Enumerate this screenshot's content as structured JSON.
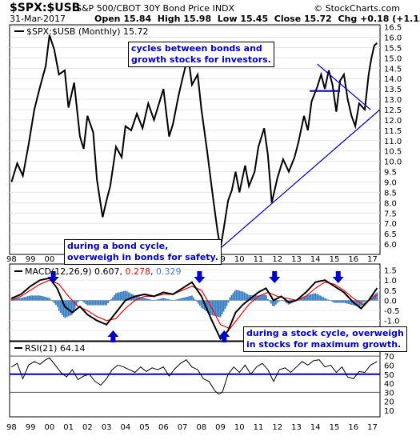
{
  "header": {
    "symbol": "$SPX:$USB",
    "description": "S&P 500/CBOT 30Y Bond Price INDX",
    "date": "31-Mar-2017",
    "quote": "Open 15.84  High 15.98  Low 15.45  Close 15.72  Chg +0.18 (+1.13%)",
    "copyright": "© StockCharts.com"
  },
  "chart_data": [
    {
      "type": "line",
      "panel": "price",
      "legend": "$SPX:$USB (Monthly) 15.72",
      "series": [
        {
          "name": "$SPX:$USB (Monthly)",
          "color": "#000000",
          "points": [
            [
              1998.0,
              9.0
            ],
            [
              1998.3,
              9.9
            ],
            [
              1998.6,
              9.3
            ],
            [
              1998.9,
              10.8
            ],
            [
              1999.2,
              12.5
            ],
            [
              1999.5,
              13.6
            ],
            [
              1999.8,
              14.6
            ],
            [
              2000.0,
              16.1
            ],
            [
              2000.25,
              15.4
            ],
            [
              2000.5,
              14.2
            ],
            [
              2000.8,
              14.4
            ],
            [
              2001.0,
              12.6
            ],
            [
              2001.3,
              13.8
            ],
            [
              2001.6,
              11.2
            ],
            [
              2001.8,
              10.6
            ],
            [
              2002.0,
              12.2
            ],
            [
              2002.3,
              11.4
            ],
            [
              2002.5,
              9.1
            ],
            [
              2002.8,
              7.3
            ],
            [
              2003.0,
              8.1
            ],
            [
              2003.2,
              8.8
            ],
            [
              2003.5,
              10.7
            ],
            [
              2003.8,
              10.2
            ],
            [
              2004.0,
              11.7
            ],
            [
              2004.3,
              11.5
            ],
            [
              2004.6,
              12.3
            ],
            [
              2004.9,
              11.6
            ],
            [
              2005.2,
              12.8
            ],
            [
              2005.5,
              12.0
            ],
            [
              2005.8,
              12.9
            ],
            [
              2006.0,
              13.5
            ],
            [
              2006.3,
              11.2
            ],
            [
              2006.5,
              11.8
            ],
            [
              2006.8,
              13.2
            ],
            [
              2007.0,
              14.0
            ],
            [
              2007.3,
              15.1
            ],
            [
              2007.5,
              13.7
            ],
            [
              2007.8,
              14.2
            ],
            [
              2008.0,
              12.5
            ],
            [
              2008.3,
              10.5
            ],
            [
              2008.6,
              8.3
            ],
            [
              2008.85,
              6.6
            ],
            [
              2009.0,
              5.8
            ],
            [
              2009.2,
              6.9
            ],
            [
              2009.4,
              8.1
            ],
            [
              2009.6,
              8.6
            ],
            [
              2009.8,
              9.5
            ],
            [
              2010.0,
              8.5
            ],
            [
              2010.3,
              9.8
            ],
            [
              2010.5,
              8.8
            ],
            [
              2010.8,
              9.5
            ],
            [
              2011.0,
              10.7
            ],
            [
              2011.3,
              11.6
            ],
            [
              2011.5,
              10.3
            ],
            [
              2011.7,
              8.0
            ],
            [
              2012.0,
              9.2
            ],
            [
              2012.3,
              10.1
            ],
            [
              2012.6,
              9.5
            ],
            [
              2012.9,
              10.2
            ],
            [
              2013.1,
              10.9
            ],
            [
              2013.4,
              12.2
            ],
            [
              2013.6,
              11.5
            ],
            [
              2013.8,
              12.9
            ],
            [
              2014.1,
              13.6
            ],
            [
              2014.3,
              14.2
            ],
            [
              2014.5,
              13.5
            ],
            [
              2014.7,
              14.4
            ],
            [
              2014.9,
              13.7
            ],
            [
              2015.1,
              12.4
            ],
            [
              2015.3,
              13.9
            ],
            [
              2015.5,
              14.2
            ],
            [
              2015.7,
              13.0
            ],
            [
              2015.9,
              12.2
            ],
            [
              2016.1,
              11.7
            ],
            [
              2016.3,
              12.8
            ],
            [
              2016.6,
              12.5
            ],
            [
              2016.8,
              14.2
            ],
            [
              2016.95,
              15.0
            ],
            [
              2017.1,
              15.6
            ],
            [
              2017.25,
              15.72
            ]
          ]
        }
      ],
      "y_ticks": [
        "16.5",
        "16.0",
        "15.5",
        "15.0",
        "14.5",
        "14.0",
        "13.5",
        "13.0",
        "12.5",
        "12.0",
        "11.5",
        "11.0",
        "10.5",
        "10.0",
        "9.5",
        "9.0",
        "8.5",
        "8.0",
        "7.5",
        "7.0",
        "6.5",
        "6.0"
      ],
      "ylim": [
        5.5,
        16.6
      ],
      "x_ticks": [
        "98",
        "99",
        "00",
        "01",
        "02",
        "03",
        "04",
        "05",
        "06",
        "07",
        "08",
        "09",
        "10",
        "11",
        "12",
        "13",
        "14",
        "15",
        "16",
        "17"
      ],
      "xlim": [
        1997.9,
        2017.4
      ],
      "trendlines": [
        {
          "from": [
            2009.0,
            5.8
          ],
          "to": [
            2017.4,
            12.5
          ],
          "color": "#0000cc"
        },
        {
          "from": [
            2014.1,
            14.7
          ],
          "to": [
            2016.9,
            12.5
          ],
          "color": "#0000cc"
        }
      ],
      "level_lines": [
        {
          "from": [
            2013.7,
            13.4
          ],
          "to": [
            2015.3,
            13.4
          ],
          "color": "#0000cc"
        }
      ]
    },
    {
      "type": "line",
      "panel": "macd",
      "legend": {
        "label": "MACD(12,26,9)",
        "macd": "0.607",
        "signal": "0.278",
        "histogram": "0.329"
      },
      "series": [
        {
          "name": "MACD",
          "color": "#000000",
          "points": [
            [
              1998.0,
              0.1
            ],
            [
              1998.5,
              0.3
            ],
            [
              1999.0,
              0.7
            ],
            [
              1999.5,
              1.0
            ],
            [
              2000.0,
              1.1
            ],
            [
              2000.4,
              0.6
            ],
            [
              2000.8,
              -0.3
            ],
            [
              2001.2,
              -0.6
            ],
            [
              2001.6,
              -0.3
            ],
            [
              2002.0,
              -0.7
            ],
            [
              2002.5,
              -1.0
            ],
            [
              2003.0,
              -1.2
            ],
            [
              2003.5,
              -0.6
            ],
            [
              2004.0,
              0.0
            ],
            [
              2004.5,
              0.2
            ],
            [
              2005.0,
              0.3
            ],
            [
              2005.5,
              0.2
            ],
            [
              2006.0,
              0.4
            ],
            [
              2006.5,
              0.3
            ],
            [
              2007.0,
              0.6
            ],
            [
              2007.5,
              0.9
            ],
            [
              2008.0,
              0.2
            ],
            [
              2008.5,
              -0.9
            ],
            [
              2009.0,
              -1.9
            ],
            [
              2009.4,
              -1.5
            ],
            [
              2009.8,
              -0.6
            ],
            [
              2010.2,
              -0.2
            ],
            [
              2010.6,
              0.1
            ],
            [
              2011.0,
              0.4
            ],
            [
              2011.4,
              0.6
            ],
            [
              2011.8,
              0.0
            ],
            [
              2012.2,
              0.2
            ],
            [
              2012.6,
              -0.1
            ],
            [
              2013.0,
              0.0
            ],
            [
              2013.5,
              0.4
            ],
            [
              2014.0,
              0.9
            ],
            [
              2014.5,
              1.0
            ],
            [
              2015.0,
              0.7
            ],
            [
              2015.5,
              0.4
            ],
            [
              2016.0,
              -0.1
            ],
            [
              2016.4,
              -0.4
            ],
            [
              2016.8,
              0.0
            ],
            [
              2017.25,
              0.607
            ]
          ]
        },
        {
          "name": "Signal",
          "color": "#ff0000",
          "points": [
            [
              1998.0,
              0.0
            ],
            [
              1998.5,
              0.2
            ],
            [
              1999.0,
              0.5
            ],
            [
              1999.5,
              0.8
            ],
            [
              2000.0,
              1.0
            ],
            [
              2000.5,
              0.8
            ],
            [
              2001.0,
              0.2
            ],
            [
              2001.5,
              -0.3
            ],
            [
              2002.0,
              -0.5
            ],
            [
              2002.5,
              -0.8
            ],
            [
              2003.0,
              -1.0
            ],
            [
              2003.5,
              -0.9
            ],
            [
              2004.0,
              -0.4
            ],
            [
              2004.5,
              0.0
            ],
            [
              2005.0,
              0.2
            ],
            [
              2005.5,
              0.2
            ],
            [
              2006.0,
              0.3
            ],
            [
              2006.5,
              0.3
            ],
            [
              2007.0,
              0.5
            ],
            [
              2007.5,
              0.7
            ],
            [
              2008.0,
              0.5
            ],
            [
              2008.5,
              -0.3
            ],
            [
              2009.0,
              -1.2
            ],
            [
              2009.5,
              -1.4
            ],
            [
              2010.0,
              -0.8
            ],
            [
              2010.5,
              -0.2
            ],
            [
              2011.0,
              0.2
            ],
            [
              2011.5,
              0.4
            ],
            [
              2012.0,
              0.2
            ],
            [
              2012.5,
              0.1
            ],
            [
              2013.0,
              0.0
            ],
            [
              2013.5,
              0.2
            ],
            [
              2014.0,
              0.6
            ],
            [
              2014.5,
              0.9
            ],
            [
              2015.0,
              0.8
            ],
            [
              2015.5,
              0.5
            ],
            [
              2016.0,
              0.1
            ],
            [
              2016.5,
              -0.2
            ],
            [
              2017.0,
              0.1
            ],
            [
              2017.25,
              0.278
            ]
          ]
        }
      ],
      "y_ticks": [
        "1.5",
        "1.0",
        "0.5",
        "0.0",
        "-0.5",
        "-1.0",
        "-1.5"
      ],
      "ylim": [
        -2.0,
        1.8
      ]
    },
    {
      "type": "line",
      "panel": "rsi",
      "legend": "RSI(21) 64.14",
      "series": [
        {
          "name": "RSI(21)",
          "color": "#000000",
          "points": [
            [
              1998.0,
              58
            ],
            [
              1998.3,
              62
            ],
            [
              1998.6,
              45
            ],
            [
              1998.9,
              60
            ],
            [
              1999.2,
              64
            ],
            [
              1999.5,
              61
            ],
            [
              1999.8,
              66
            ],
            [
              2000.0,
              68
            ],
            [
              2000.3,
              60
            ],
            [
              2000.6,
              52
            ],
            [
              2000.9,
              47
            ],
            [
              2001.2,
              55
            ],
            [
              2001.5,
              44
            ],
            [
              2001.8,
              48
            ],
            [
              2002.1,
              50
            ],
            [
              2002.4,
              42
            ],
            [
              2002.7,
              38
            ],
            [
              2003.0,
              45
            ],
            [
              2003.3,
              55
            ],
            [
              2003.6,
              60
            ],
            [
              2003.9,
              58
            ],
            [
              2004.2,
              55
            ],
            [
              2004.5,
              52
            ],
            [
              2004.8,
              58
            ],
            [
              2005.1,
              53
            ],
            [
              2005.4,
              57
            ],
            [
              2005.7,
              55
            ],
            [
              2006.0,
              58
            ],
            [
              2006.3,
              48
            ],
            [
              2006.6,
              56
            ],
            [
              2006.9,
              62
            ],
            [
              2007.2,
              66
            ],
            [
              2007.5,
              58
            ],
            [
              2007.8,
              55
            ],
            [
              2008.1,
              45
            ],
            [
              2008.4,
              42
            ],
            [
              2008.7,
              32
            ],
            [
              2008.9,
              28
            ],
            [
              2009.1,
              30
            ],
            [
              2009.4,
              50
            ],
            [
              2009.7,
              58
            ],
            [
              2010.0,
              52
            ],
            [
              2010.3,
              60
            ],
            [
              2010.6,
              50
            ],
            [
              2010.9,
              58
            ],
            [
              2011.2,
              62
            ],
            [
              2011.5,
              55
            ],
            [
              2011.8,
              42
            ],
            [
              2012.1,
              55
            ],
            [
              2012.4,
              57
            ],
            [
              2012.7,
              52
            ],
            [
              2013.0,
              58
            ],
            [
              2013.3,
              64
            ],
            [
              2013.6,
              60
            ],
            [
              2013.9,
              65
            ],
            [
              2014.2,
              66
            ],
            [
              2014.5,
              58
            ],
            [
              2014.8,
              60
            ],
            [
              2015.1,
              52
            ],
            [
              2015.4,
              58
            ],
            [
              2015.7,
              47
            ],
            [
              2016.0,
              45
            ],
            [
              2016.3,
              53
            ],
            [
              2016.6,
              52
            ],
            [
              2016.9,
              60
            ],
            [
              2017.25,
              64.14
            ]
          ]
        }
      ],
      "y_ticks": [
        "80",
        "70",
        "60",
        "50",
        "40",
        "30",
        "20",
        "10"
      ],
      "reference_lines": [
        70,
        50,
        30
      ],
      "ylim": [
        3,
        86
      ]
    }
  ],
  "annotations": {
    "cycles": [
      "cycles between bonds and",
      "growth stocks for investors."
    ],
    "bond_cycle": [
      "during a bond cycle,",
      "overweigh in bonds for safety."
    ],
    "stock_cycle": [
      "during a stock cycle, overweigh",
      "in stocks for maximum growth."
    ]
  },
  "arrows": [
    {
      "year": 2000.2,
      "direction": "down"
    },
    {
      "year": 2003.35,
      "direction": "up"
    },
    {
      "year": 2007.9,
      "direction": "down"
    },
    {
      "year": 2009.2,
      "direction": "up"
    },
    {
      "year": 2011.85,
      "direction": "down"
    },
    {
      "year": 2013.0,
      "direction": "up"
    },
    {
      "year": 2015.2,
      "direction": "down"
    },
    {
      "year": 2016.4,
      "direction": "up"
    }
  ],
  "colors": {
    "annotation": "#0000cc",
    "macd_histogram": "#3b7fc4",
    "signal": "#ff0000",
    "rsi_50_line": "#0000cc"
  }
}
